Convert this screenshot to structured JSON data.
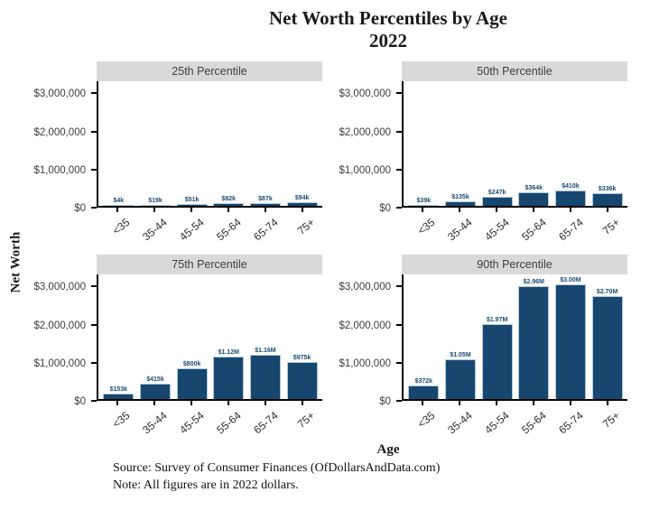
{
  "title": {
    "line1": "Net Worth Percentiles by Age",
    "line2": "2022"
  },
  "axes": {
    "y_label": "Net Worth",
    "x_label": "Age",
    "x_categories": [
      "<35",
      "35-44",
      "45-54",
      "55-64",
      "65-74",
      "75+"
    ],
    "y_tick_labels": [
      "$0",
      "$1,000,000",
      "$2,000,000",
      "$3,000,000"
    ]
  },
  "footer": {
    "source": "Source:  Survey of Consumer Finances (OfDollarsAndData.com)",
    "note": "Note: All figures are in 2022 dollars."
  },
  "colors": {
    "bar_fill": "#17466e",
    "bar_outline": "#aec8dc",
    "panel_header_bg": "#d9d9d9",
    "value_label": "#1b4a73"
  },
  "chart_data": {
    "type": "bar",
    "title": "Net Worth Percentiles by Age 2022",
    "xlabel": "Age",
    "ylabel": "Net Worth",
    "categories": [
      "<35",
      "35-44",
      "45-54",
      "55-64",
      "65-74",
      "75+"
    ],
    "ylim": [
      0,
      3300000
    ],
    "grid": false,
    "legend_position": "none",
    "y_ticks": [
      {
        "label": "$0",
        "value": 0
      },
      {
        "label": "$1,000,000",
        "value": 1000000
      },
      {
        "label": "$2,000,000",
        "value": 2000000
      },
      {
        "label": "$3,000,000",
        "value": 3000000
      }
    ],
    "panels": [
      {
        "label": "25th Percentile",
        "values": [
          4000,
          19000,
          51000,
          82000,
          87000,
          94000
        ],
        "value_labels": [
          "$4k",
          "$19k",
          "$51k",
          "$82k",
          "$87k",
          "$94k"
        ]
      },
      {
        "label": "50th Percentile",
        "values": [
          39000,
          135000,
          247000,
          364000,
          410000,
          336000
        ],
        "value_labels": [
          "$39k",
          "$135k",
          "$247k",
          "$364k",
          "$410k",
          "$336k"
        ]
      },
      {
        "label": "75th Percentile",
        "values": [
          153000,
          415000,
          800000,
          1120000,
          1160000,
          975000
        ],
        "value_labels": [
          "$153k",
          "$415k",
          "$800k",
          "$1.12M",
          "$1.16M",
          "$975k"
        ]
      },
      {
        "label": "90th Percentile",
        "values": [
          372000,
          1050000,
          1970000,
          2960000,
          3000000,
          2700000
        ],
        "value_labels": [
          "$372k",
          "$1.05M",
          "$1.97M",
          "$2.96M",
          "$3.00M",
          "$2.70M"
        ]
      }
    ]
  }
}
